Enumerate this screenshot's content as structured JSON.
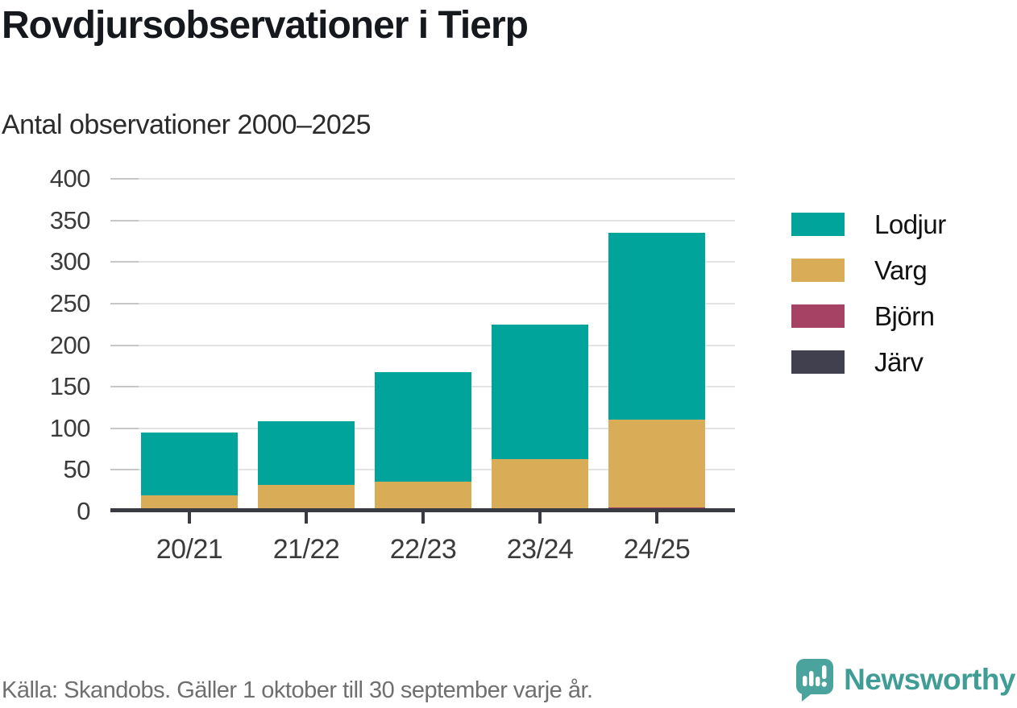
{
  "header": {
    "title": "Rovdjursobservationer i Tierp",
    "subtitle": "Antal observationer 2000–2025"
  },
  "chart_data": {
    "type": "bar",
    "stacked": true,
    "title": "Rovdjursobservationer i Tierp",
    "subtitle": "Antal observationer 2000–2025",
    "categories": [
      "20/21",
      "21/22",
      "22/23",
      "23/24",
      "24/25"
    ],
    "series": [
      {
        "name": "Lodjur",
        "color": "#00a49b",
        "values": [
          76,
          76,
          132,
          162,
          225
        ]
      },
      {
        "name": "Varg",
        "color": "#d9ac58",
        "values": [
          19,
          31,
          35,
          61,
          105
        ]
      },
      {
        "name": "Björn",
        "color": "#a64263",
        "values": [
          0,
          1,
          1,
          2,
          1
        ]
      },
      {
        "name": "Järv",
        "color": "#40404e",
        "values": [
          0,
          0,
          0,
          0,
          4
        ]
      }
    ],
    "totals": [
      95,
      108,
      168,
      225,
      335
    ],
    "ylim": [
      0,
      400
    ],
    "yticks": [
      0,
      50,
      100,
      150,
      200,
      250,
      300,
      350,
      400
    ],
    "xlabel": "",
    "ylabel": "",
    "grid": true,
    "legend_position": "right"
  },
  "footer": {
    "source": "Källa: Skandobs. Gäller 1 oktober till 30 september varje år.",
    "brand": "Newsworthy"
  },
  "colors": {
    "accent_teal": "#00a49b",
    "brand_teal": "#3f9d96",
    "axis": "#3a3a42",
    "gridline": "#e3e3e3"
  }
}
